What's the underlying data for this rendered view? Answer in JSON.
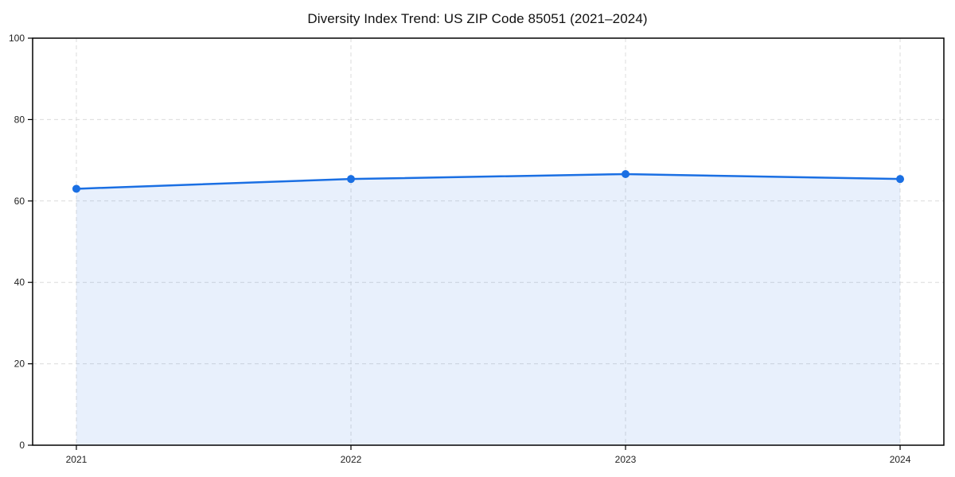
{
  "title": "Diversity Index Trend: US ZIP Code 85051 (2021–2024)",
  "colors": {
    "line": "#1a6fe3",
    "marker": "#1a6fe3",
    "fill": "#1a6fe3",
    "fill_opacity": 0.1,
    "grid": "#dcdcdc",
    "spine": "#000000",
    "tick_text": "#222222",
    "background": "#ffffff"
  },
  "chart_data": {
    "type": "area",
    "title": "Diversity Index Trend: US ZIP Code 85051 (2021–2024)",
    "categories": [
      "2021",
      "2022",
      "2023",
      "2024"
    ],
    "series": [
      {
        "name": "Diversity Index",
        "values": [
          63.0,
          65.4,
          66.6,
          65.4
        ]
      }
    ],
    "xlabel": "",
    "ylabel": "",
    "ylim": [
      0,
      100
    ],
    "yticks": [
      0,
      20,
      40,
      60,
      80,
      100
    ],
    "grid": true,
    "grid_style": "dashed",
    "legend_position": "none",
    "marker": "circle",
    "line_width": 2.5,
    "marker_radius": 5
  }
}
